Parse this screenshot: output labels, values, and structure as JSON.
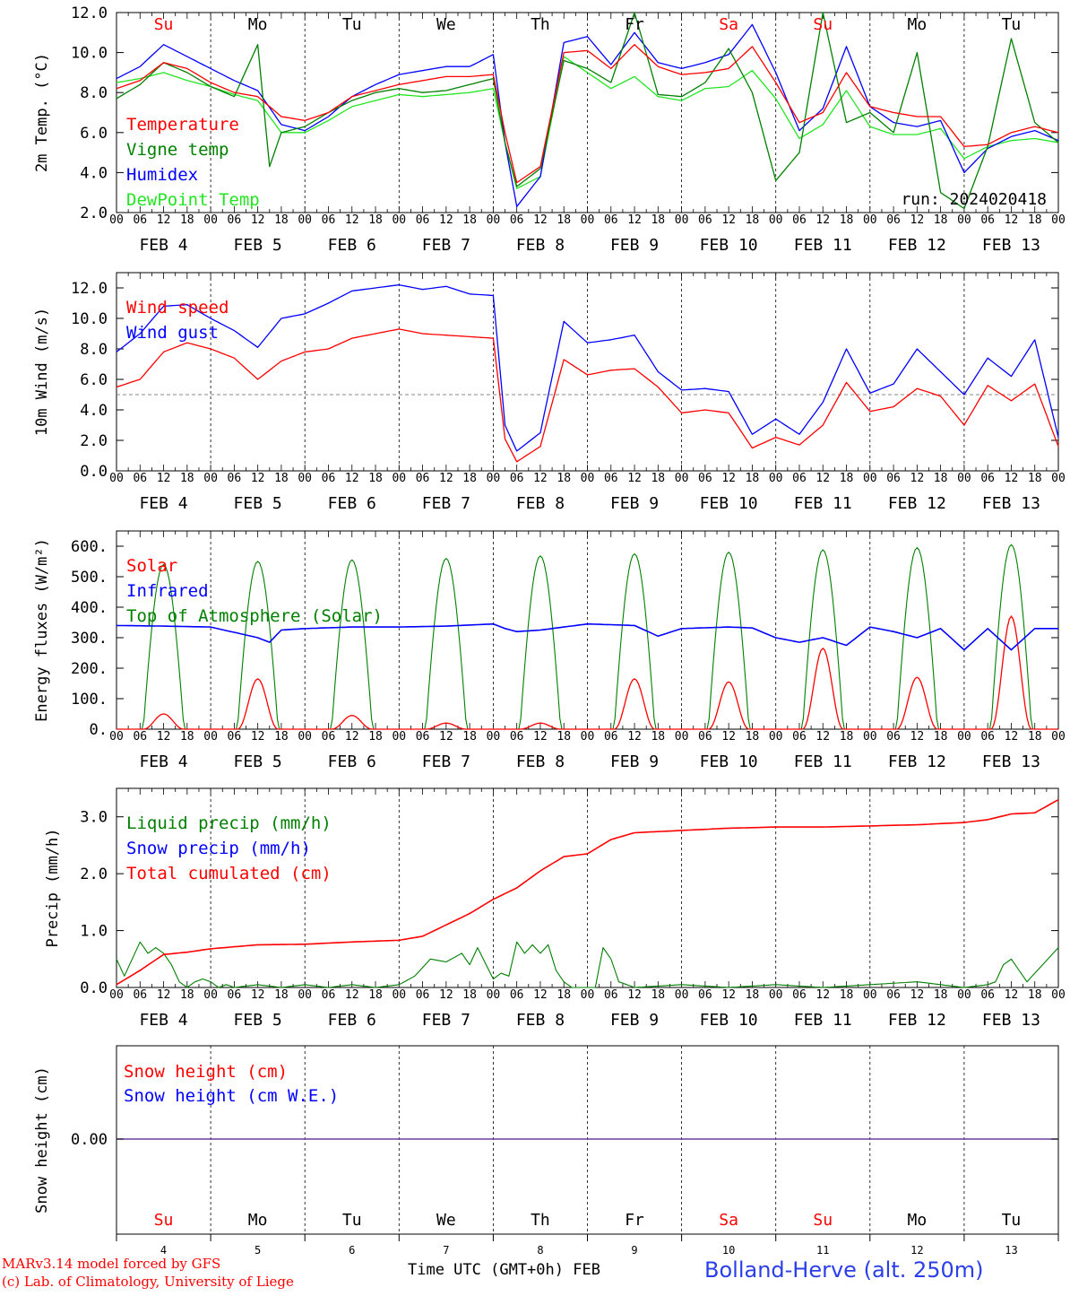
{
  "chart_data": [
    {
      "type": "line",
      "ylabel": "2m Temp. (°C)",
      "ylim": [
        2.0,
        12.0
      ],
      "yticks": [
        "2.0",
        "4.0",
        "6.0",
        "8.0",
        "10.0",
        "12.0"
      ],
      "run_label": "run: 2024020418",
      "x_hour_labels": [
        "00",
        "06",
        "12",
        "18"
      ],
      "date_labels": [
        "FEB 4",
        "FEB 5",
        "FEB 6",
        "FEB 7",
        "FEB 8",
        "FEB 9",
        "FEB 10",
        "FEB 11",
        "FEB 12",
        "FEB 13"
      ],
      "weekday_labels": [
        "Su",
        "Mo",
        "Tu",
        "We",
        "Th",
        "Fr",
        "Sa",
        "Su",
        "Mo",
        "Tu"
      ],
      "weekend_flags": [
        true,
        false,
        false,
        false,
        false,
        false,
        true,
        true,
        false,
        false
      ],
      "series": [
        {
          "name": "Temperature",
          "color": "#ff0000",
          "x": [
            0,
            6,
            12,
            18,
            24,
            30,
            36,
            42,
            48,
            54,
            60,
            66,
            72,
            78,
            84,
            90,
            96,
            99,
            102,
            108,
            114,
            120,
            126,
            132,
            138,
            144,
            150,
            156,
            162,
            168,
            174,
            180,
            186,
            192,
            198,
            204,
            210,
            216,
            222,
            228,
            234,
            240
          ],
          "values": [
            8.2,
            8.6,
            9.5,
            9.2,
            8.5,
            8.0,
            7.8,
            6.8,
            6.6,
            7.0,
            7.8,
            8.1,
            8.4,
            8.6,
            8.8,
            8.8,
            8.9,
            6.0,
            3.5,
            4.3,
            10.0,
            10.1,
            9.2,
            10.4,
            9.3,
            8.9,
            9.0,
            9.2,
            10.3,
            8.5,
            6.5,
            7.0,
            9.0,
            7.3,
            7.0,
            6.8,
            6.8,
            5.3,
            5.4,
            6.0,
            6.3,
            6.0
          ]
        },
        {
          "name": "Vigne temp",
          "color": "#008000",
          "x": [
            0,
            6,
            12,
            18,
            24,
            30,
            36,
            39,
            42,
            48,
            54,
            60,
            66,
            72,
            78,
            84,
            90,
            96,
            99,
            102,
            108,
            114,
            120,
            126,
            132,
            138,
            144,
            150,
            156,
            162,
            168,
            174,
            180,
            186,
            192,
            198,
            204,
            210,
            216,
            222,
            228,
            234,
            240
          ],
          "values": [
            7.7,
            8.4,
            9.5,
            9.0,
            8.3,
            7.8,
            10.4,
            4.3,
            6.0,
            6.3,
            7.0,
            7.6,
            8.0,
            8.2,
            8.0,
            8.1,
            8.4,
            8.7,
            5.5,
            3.3,
            4.2,
            9.6,
            9.2,
            8.5,
            12.0,
            7.9,
            7.8,
            8.5,
            10.2,
            8.0,
            3.6,
            5.0,
            12.0,
            6.5,
            7.0,
            6.0,
            10.0,
            3.0,
            2.2,
            5.3,
            10.7,
            6.5,
            5.5
          ]
        },
        {
          "name": "Humidex",
          "color": "#0000ff",
          "x": [
            0,
            6,
            12,
            18,
            24,
            30,
            36,
            42,
            48,
            54,
            60,
            66,
            72,
            78,
            84,
            90,
            96,
            99,
            102,
            108,
            114,
            120,
            126,
            132,
            138,
            144,
            150,
            156,
            162,
            168,
            174,
            180,
            186,
            192,
            198,
            204,
            210,
            216,
            222,
            228,
            234,
            240
          ],
          "values": [
            8.7,
            9.3,
            10.4,
            9.8,
            9.2,
            8.6,
            8.1,
            6.4,
            6.1,
            6.8,
            7.8,
            8.4,
            8.9,
            9.1,
            9.3,
            9.3,
            9.9,
            5.5,
            2.3,
            3.8,
            10.5,
            10.8,
            9.4,
            11.0,
            9.5,
            9.2,
            9.5,
            9.9,
            11.4,
            9.0,
            6.1,
            7.2,
            10.3,
            7.3,
            6.5,
            6.3,
            6.6,
            4.0,
            5.2,
            5.8,
            6.1,
            5.6
          ]
        },
        {
          "name": "DewPoint Temp",
          "color": "#22e622",
          "x": [
            0,
            6,
            12,
            18,
            24,
            30,
            36,
            42,
            48,
            54,
            60,
            66,
            72,
            78,
            84,
            90,
            96,
            99,
            102,
            108,
            114,
            120,
            126,
            132,
            138,
            144,
            150,
            156,
            162,
            168,
            174,
            180,
            186,
            192,
            198,
            204,
            210,
            216,
            222,
            228,
            234,
            240
          ],
          "values": [
            8.5,
            8.7,
            9.0,
            8.6,
            8.3,
            7.9,
            7.6,
            6.0,
            6.0,
            6.6,
            7.3,
            7.6,
            7.9,
            7.8,
            7.9,
            8.0,
            8.2,
            5.5,
            3.2,
            3.8,
            9.8,
            9.0,
            8.2,
            8.8,
            7.8,
            7.6,
            8.2,
            8.3,
            9.1,
            7.7,
            5.7,
            6.4,
            8.1,
            6.3,
            5.9,
            5.9,
            6.2,
            4.7,
            5.3,
            5.6,
            5.7,
            5.5
          ]
        }
      ]
    },
    {
      "type": "line",
      "ylabel": "10m Wind (m/s)",
      "ylim": [
        0.0,
        13.0
      ],
      "yticks": [
        "0.0",
        "2.0",
        "4.0",
        "6.0",
        "8.0",
        "10.0",
        "12.0"
      ],
      "reference_line": 5.0,
      "date_labels": [
        "FEB 4",
        "FEB 5",
        "FEB 6",
        "FEB 7",
        "FEB 8",
        "FEB 9",
        "FEB 10",
        "FEB 11",
        "FEB 12",
        "FEB 13"
      ],
      "series": [
        {
          "name": "Wind speed",
          "color": "#ff0000",
          "x": [
            0,
            6,
            12,
            18,
            24,
            30,
            36,
            42,
            48,
            54,
            60,
            66,
            72,
            78,
            84,
            90,
            96,
            99,
            102,
            108,
            114,
            120,
            126,
            132,
            138,
            144,
            150,
            156,
            162,
            168,
            174,
            180,
            186,
            192,
            198,
            204,
            210,
            216,
            222,
            228,
            234,
            240
          ],
          "values": [
            5.5,
            6.0,
            7.8,
            8.4,
            8.0,
            7.4,
            6.0,
            7.2,
            7.8,
            8.0,
            8.7,
            9.0,
            9.3,
            9.0,
            8.9,
            8.8,
            8.7,
            2.1,
            0.6,
            1.6,
            7.3,
            6.3,
            6.6,
            6.7,
            5.5,
            3.8,
            4.0,
            3.8,
            1.5,
            2.2,
            1.7,
            3.0,
            5.8,
            3.9,
            4.2,
            5.4,
            4.9,
            3.0,
            5.6,
            4.6,
            5.7,
            1.6
          ]
        },
        {
          "name": "Wind gust",
          "color": "#0000ff",
          "x": [
            0,
            6,
            12,
            18,
            24,
            30,
            36,
            42,
            48,
            54,
            60,
            66,
            72,
            78,
            84,
            90,
            96,
            99,
            102,
            108,
            114,
            120,
            126,
            132,
            138,
            144,
            150,
            156,
            162,
            168,
            174,
            180,
            186,
            192,
            198,
            204,
            210,
            216,
            222,
            228,
            234,
            240
          ],
          "values": [
            7.8,
            9.0,
            10.8,
            10.9,
            10.0,
            9.2,
            8.1,
            10.0,
            10.3,
            11.0,
            11.8,
            12.0,
            12.2,
            11.9,
            12.1,
            11.6,
            11.5,
            3.0,
            1.3,
            2.5,
            9.8,
            8.4,
            8.6,
            8.9,
            6.5,
            5.3,
            5.4,
            5.2,
            2.4,
            3.4,
            2.4,
            4.5,
            8.0,
            5.1,
            5.7,
            8.0,
            6.5,
            5.0,
            7.4,
            6.2,
            8.6,
            2.2
          ]
        }
      ]
    },
    {
      "type": "line",
      "ylabel": "Energy fluxes (W/m²)",
      "ylim": [
        0,
        650
      ],
      "yticks": [
        "0.",
        "100.",
        "200.",
        "300.",
        "400.",
        "500.",
        "600."
      ],
      "date_labels": [
        "FEB 4",
        "FEB 5",
        "FEB 6",
        "FEB 7",
        "FEB 8",
        "FEB 9",
        "FEB 10",
        "FEB 11",
        "FEB 12",
        "FEB 13"
      ],
      "toa_peaks": [
        540,
        550,
        555,
        560,
        568,
        575,
        580,
        588,
        595,
        605
      ],
      "solar_peaks": [
        50,
        165,
        45,
        20,
        20,
        165,
        155,
        265,
        170,
        370
      ],
      "series": [
        {
          "name": "Solar",
          "color": "#ff0000"
        },
        {
          "name": "Infrared",
          "color": "#0000ff",
          "x": [
            0,
            12,
            24,
            36,
            39,
            42,
            48,
            60,
            72,
            84,
            96,
            99,
            102,
            108,
            120,
            132,
            138,
            144,
            156,
            162,
            168,
            174,
            180,
            186,
            192,
            198,
            204,
            210,
            216,
            222,
            228,
            234,
            240
          ],
          "values": [
            340,
            338,
            335,
            300,
            285,
            325,
            330,
            335,
            335,
            338,
            345,
            330,
            320,
            325,
            345,
            340,
            305,
            330,
            335,
            332,
            300,
            285,
            300,
            275,
            335,
            320,
            300,
            330,
            260,
            330,
            260,
            330,
            330
          ]
        },
        {
          "name": "Top of Atmosphere (Solar)",
          "color": "#008000"
        }
      ]
    },
    {
      "type": "line",
      "ylabel": "Precip (mm/h)",
      "ylim": [
        0.0,
        3.5
      ],
      "yticks": [
        "0.0",
        "1.0",
        "2.0",
        "3.0"
      ],
      "date_labels": [
        "FEB 4",
        "FEB 5",
        "FEB 6",
        "FEB 7",
        "FEB 8",
        "FEB 9",
        "FEB 10",
        "FEB 11",
        "FEB 12",
        "FEB 13"
      ],
      "series": [
        {
          "name": "Liquid precip (mm/h)",
          "color": "#008000",
          "x": [
            0,
            2,
            4,
            6,
            8,
            10,
            12,
            14,
            16,
            18,
            20,
            22,
            24,
            26,
            28,
            30,
            36,
            42,
            48,
            54,
            60,
            66,
            72,
            76,
            78,
            80,
            84,
            88,
            90,
            92,
            96,
            98,
            100,
            102,
            104,
            106,
            108,
            110,
            112,
            114,
            116,
            118,
            120,
            122,
            124,
            126,
            128,
            132,
            144,
            156,
            168,
            180,
            192,
            204,
            210,
            216,
            222,
            224,
            226,
            228,
            232,
            236,
            240
          ],
          "values": [
            0.5,
            0.2,
            0.5,
            0.8,
            0.6,
            0.7,
            0.6,
            0.4,
            0.1,
            0.0,
            0.1,
            0.15,
            0.1,
            0.0,
            0.05,
            0.0,
            0.05,
            0.0,
            0.05,
            0.0,
            0.05,
            0.0,
            0.05,
            0.2,
            0.35,
            0.5,
            0.45,
            0.6,
            0.4,
            0.7,
            0.15,
            0.25,
            0.2,
            0.8,
            0.6,
            0.75,
            0.6,
            0.75,
            0.3,
            0.1,
            0.0,
            0.0,
            0.0,
            0.0,
            0.7,
            0.5,
            0.1,
            0.0,
            0.05,
            0.0,
            0.05,
            0.0,
            0.05,
            0.1,
            0.05,
            0.0,
            0.05,
            0.1,
            0.4,
            0.5,
            0.1,
            0.4,
            0.7
          ]
        },
        {
          "name": "Snow precip (mm/h)",
          "color": "#0000ff"
        },
        {
          "name": "Total cumulated (cm)",
          "color": "#ff0000",
          "x": [
            0,
            6,
            12,
            18,
            24,
            36,
            48,
            60,
            72,
            78,
            84,
            90,
            96,
            102,
            108,
            114,
            120,
            126,
            132,
            144,
            156,
            168,
            180,
            192,
            204,
            216,
            222,
            228,
            234,
            240
          ],
          "values": [
            0.05,
            0.3,
            0.58,
            0.62,
            0.68,
            0.75,
            0.76,
            0.8,
            0.83,
            0.9,
            1.1,
            1.3,
            1.55,
            1.75,
            2.05,
            2.3,
            2.35,
            2.6,
            2.72,
            2.76,
            2.8,
            2.82,
            2.82,
            2.84,
            2.86,
            2.9,
            2.95,
            3.05,
            3.07,
            3.3
          ]
        }
      ]
    },
    {
      "type": "line",
      "ylabel": "Snow height (cm)",
      "yticks": [
        "0.00"
      ],
      "bottom_day_numbers": [
        "4",
        "5",
        "6",
        "7",
        "8",
        "9",
        "10",
        "11",
        "12",
        "13"
      ],
      "series": [
        {
          "name": "Snow height (cm)",
          "color": "#ff0000",
          "values": [
            0.0
          ]
        },
        {
          "name": "Snow height (cm W.E.)",
          "color": "#0000ff",
          "values": [
            0.0
          ]
        }
      ]
    }
  ],
  "footer": {
    "model_credit": "MARv3.14 model forced by GFS",
    "lab_credit": "(c) Lab. of Climatology, University of Liege",
    "xlabel": "Time UTC (GMT+0h) FEB",
    "station": "Bolland-Herve (alt. 250m)"
  }
}
